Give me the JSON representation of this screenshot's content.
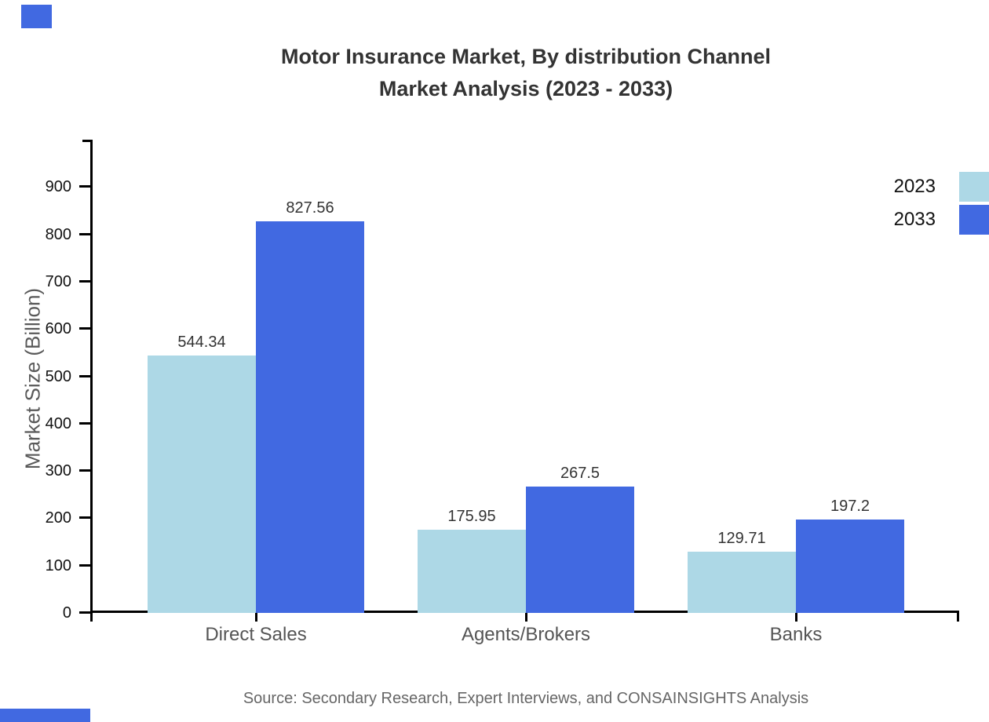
{
  "title": {
    "line1": "Motor Insurance Market, By distribution Channel",
    "line2": "Market Analysis (2023 - 2033)"
  },
  "source_note": "Source: Secondary Research, Expert Interviews, and CONSAINSIGHTS Analysis",
  "colors": {
    "series_2023": "#ADD8E6",
    "series_2033": "#4169E1",
    "axis": "#000000",
    "accent_decoration": "#4169E1"
  },
  "legend": {
    "items": [
      {
        "label": "2023",
        "color": "#ADD8E6"
      },
      {
        "label": "2033",
        "color": "#4169E1"
      }
    ]
  },
  "chart_data": {
    "type": "bar",
    "title": "Motor Insurance Market, By distribution Channel Market Analysis (2023 - 2033)",
    "categories": [
      "Direct Sales",
      "Agents/Brokers",
      "Banks"
    ],
    "series": [
      {
        "name": "2023",
        "color": "#ADD8E6",
        "values": [
          544.34,
          175.95,
          129.71
        ]
      },
      {
        "name": "2033",
        "color": "#4169E1",
        "values": [
          827.56,
          267.5,
          197.2
        ]
      }
    ],
    "data_labels": [
      "544.34",
      "827.56",
      "175.95",
      "267.5",
      "129.71",
      "197.2"
    ],
    "xlabel": "",
    "ylabel": "Market Size (Billion)",
    "ylim": [
      0,
      1000
    ],
    "yticks": [
      0,
      100,
      200,
      300,
      400,
      500,
      600,
      700,
      800,
      900
    ],
    "grid": false,
    "legend_position": "top-right"
  }
}
